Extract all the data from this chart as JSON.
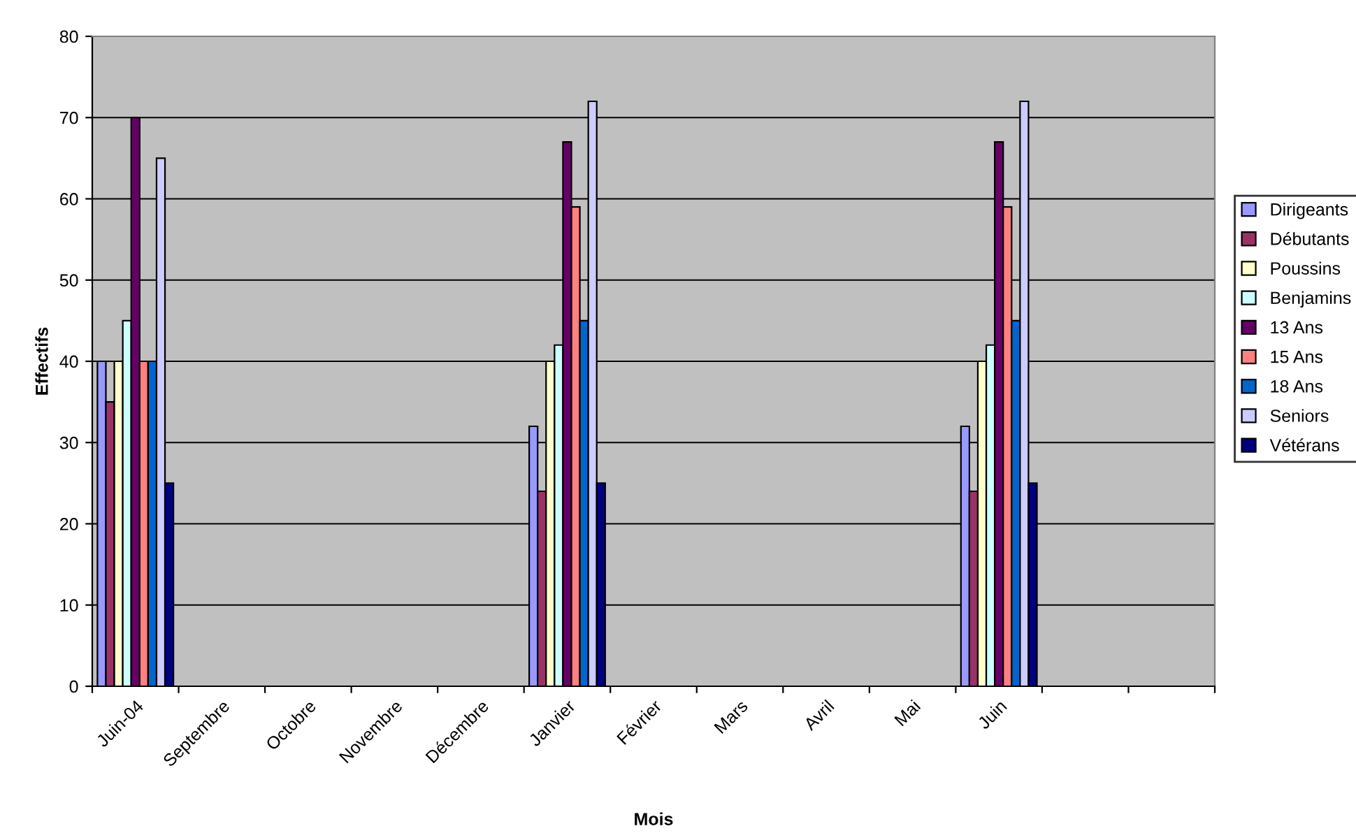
{
  "chart_data": {
    "type": "bar",
    "xlabel": "Mois",
    "ylabel": "Effectifs",
    "categories": [
      "Juin-04",
      "Septembre",
      "Octobre",
      "Novembre",
      "Décembre",
      "Janvier",
      "Février",
      "Mars",
      "Avril",
      "Mai",
      "Juin",
      null,
      null
    ],
    "series": [
      {
        "name": "Dirigeants",
        "color": "#9999ff",
        "values": [
          40,
          null,
          null,
          null,
          null,
          32,
          null,
          null,
          null,
          null,
          32,
          null,
          null
        ]
      },
      {
        "name": "Débutants",
        "color": "#993366",
        "values": [
          35,
          null,
          null,
          null,
          null,
          24,
          null,
          null,
          null,
          null,
          24,
          null,
          null
        ]
      },
      {
        "name": "Poussins",
        "color": "#ffffcc",
        "values": [
          40,
          null,
          null,
          null,
          null,
          40,
          null,
          null,
          null,
          null,
          40,
          null,
          null
        ]
      },
      {
        "name": "Benjamins",
        "color": "#ccffff",
        "values": [
          45,
          null,
          null,
          null,
          null,
          42,
          null,
          null,
          null,
          null,
          42,
          null,
          null
        ]
      },
      {
        "name": "13 Ans",
        "color": "#660066",
        "values": [
          70,
          null,
          null,
          null,
          null,
          67,
          null,
          null,
          null,
          null,
          67,
          null,
          null
        ]
      },
      {
        "name": "15 Ans",
        "color": "#ff8080",
        "values": [
          40,
          null,
          null,
          null,
          null,
          59,
          null,
          null,
          null,
          null,
          59,
          null,
          null
        ]
      },
      {
        "name": "18 Ans",
        "color": "#0066cc",
        "values": [
          40,
          null,
          null,
          null,
          null,
          45,
          null,
          null,
          null,
          null,
          45,
          null,
          null
        ]
      },
      {
        "name": "Seniors",
        "color": "#ccccff",
        "values": [
          65,
          null,
          null,
          null,
          null,
          72,
          null,
          null,
          null,
          null,
          72,
          null,
          null
        ]
      },
      {
        "name": "Vétérans",
        "color": "#000080",
        "values": [
          25,
          null,
          null,
          null,
          null,
          25,
          null,
          null,
          null,
          null,
          25,
          null,
          null
        ]
      }
    ],
    "ylim": [
      0,
      80
    ],
    "yticks": [
      0,
      10,
      20,
      30,
      40,
      50,
      60,
      70,
      80
    ],
    "grid": "y",
    "legend": "right"
  }
}
